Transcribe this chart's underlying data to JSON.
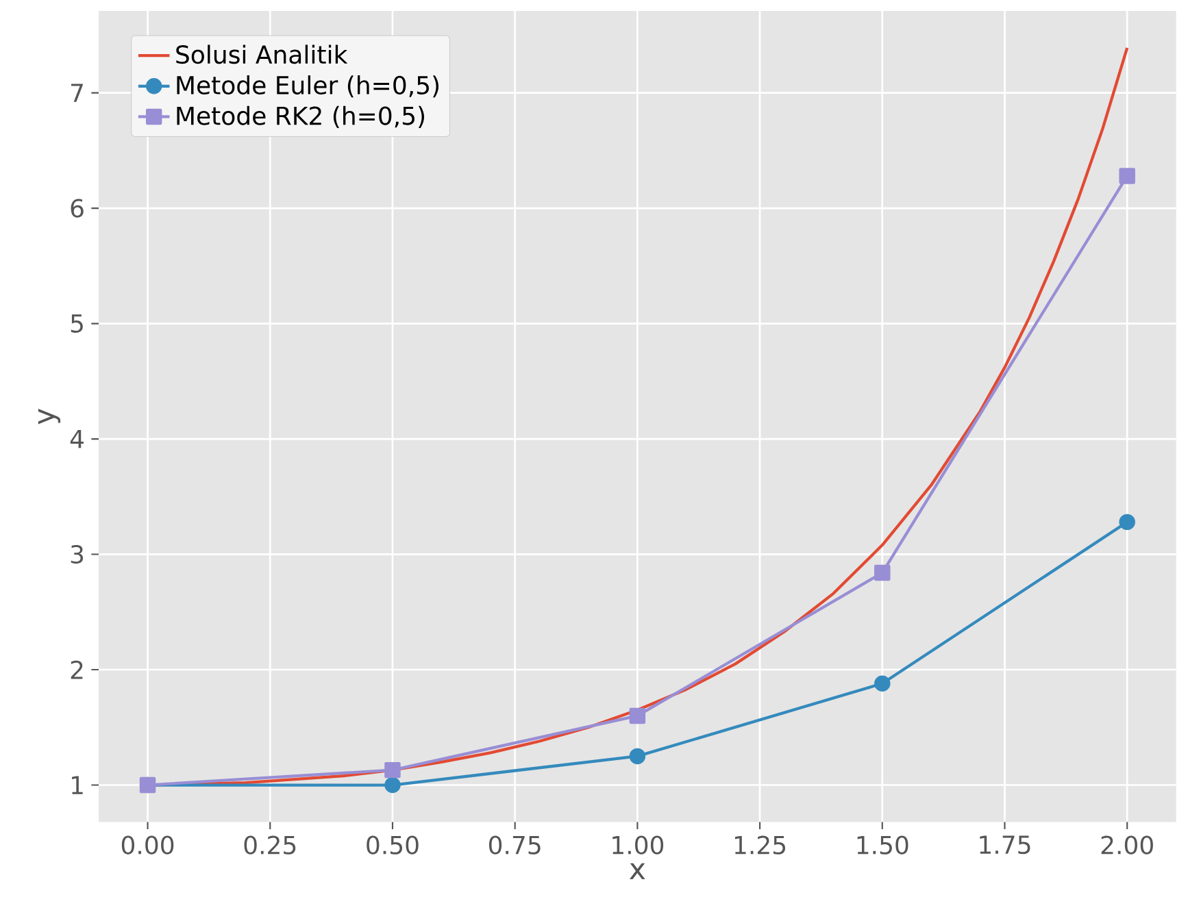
{
  "chart_data": {
    "type": "line",
    "xlabel": "x",
    "ylabel": "y",
    "xlim": [
      -0.1,
      2.1
    ],
    "ylim": [
      0.68,
      7.71
    ],
    "xticks": [
      {
        "value": 0,
        "label": "0.00"
      },
      {
        "value": 0.25,
        "label": "0.25"
      },
      {
        "value": 0.5,
        "label": "0.50"
      },
      {
        "value": 0.75,
        "label": "0.75"
      },
      {
        "value": 1,
        "label": "1.00"
      },
      {
        "value": 1.25,
        "label": "1.25"
      },
      {
        "value": 1.5,
        "label": "1.50"
      },
      {
        "value": 1.75,
        "label": "1.75"
      },
      {
        "value": 2,
        "label": "2.00"
      }
    ],
    "yticks": [
      1,
      2,
      3,
      4,
      5,
      6,
      7
    ],
    "grid": true,
    "legend": "top left",
    "series": [
      {
        "name": "Solusi Analitik",
        "color": "#e24a33",
        "marker": "none",
        "x": [
          0,
          0.1,
          0.2,
          0.3,
          0.4,
          0.5,
          0.6,
          0.7,
          0.8,
          0.9,
          1.0,
          1.1,
          1.2,
          1.3,
          1.4,
          1.5,
          1.6,
          1.7,
          1.75,
          1.8,
          1.85,
          1.9,
          1.95,
          2.0
        ],
        "values": [
          1.0,
          1.01,
          1.02,
          1.05,
          1.08,
          1.13,
          1.2,
          1.28,
          1.38,
          1.5,
          1.65,
          1.83,
          2.05,
          2.33,
          2.66,
          3.08,
          3.6,
          4.24,
          4.62,
          5.05,
          5.54,
          6.08,
          6.69,
          7.39
        ]
      },
      {
        "name": "Metode Euler (h=0,5)",
        "color": "#348abd",
        "marker": "circle",
        "x": [
          0,
          0.5,
          1.0,
          1.5,
          2.0
        ],
        "values": [
          1.0,
          1.0,
          1.25,
          1.88,
          3.28
        ]
      },
      {
        "name": "Metode RK2 (h=0,5)",
        "color": "#988ed5",
        "marker": "square",
        "x": [
          0,
          0.5,
          1.0,
          1.5,
          2.0
        ],
        "values": [
          1.0,
          1.13,
          1.6,
          2.84,
          6.28
        ]
      }
    ]
  }
}
